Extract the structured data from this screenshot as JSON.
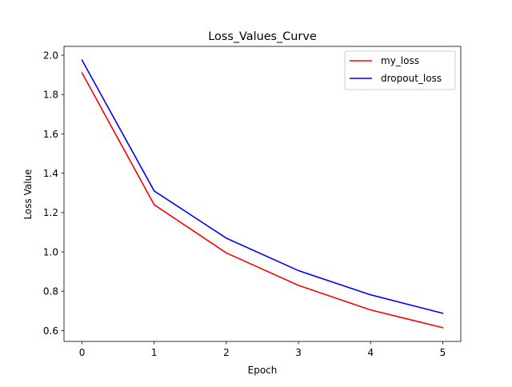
{
  "chart_data": {
    "type": "line",
    "title": "Loss_Values_Curve",
    "xlabel": "Epoch",
    "ylabel": "Loss Value",
    "x": [
      0,
      1,
      2,
      3,
      4,
      5
    ],
    "xticks": [
      "0",
      "1",
      "2",
      "3",
      "4",
      "5"
    ],
    "yticks": [
      "0.6",
      "0.8",
      "1.0",
      "1.2",
      "1.4",
      "1.6",
      "1.8",
      "2.0"
    ],
    "xlim": [
      -0.25,
      5.25
    ],
    "ylim": [
      0.545,
      2.045
    ],
    "grid": false,
    "legend_position": "top-right",
    "series": [
      {
        "name": "my_loss",
        "color": "#ff0000",
        "values": [
          1.91,
          1.24,
          0.995,
          0.83,
          0.705,
          0.615
        ]
      },
      {
        "name": "dropout_loss",
        "color": "#0000ff",
        "values": [
          1.975,
          1.31,
          1.07,
          0.905,
          0.782,
          0.688
        ]
      }
    ]
  }
}
